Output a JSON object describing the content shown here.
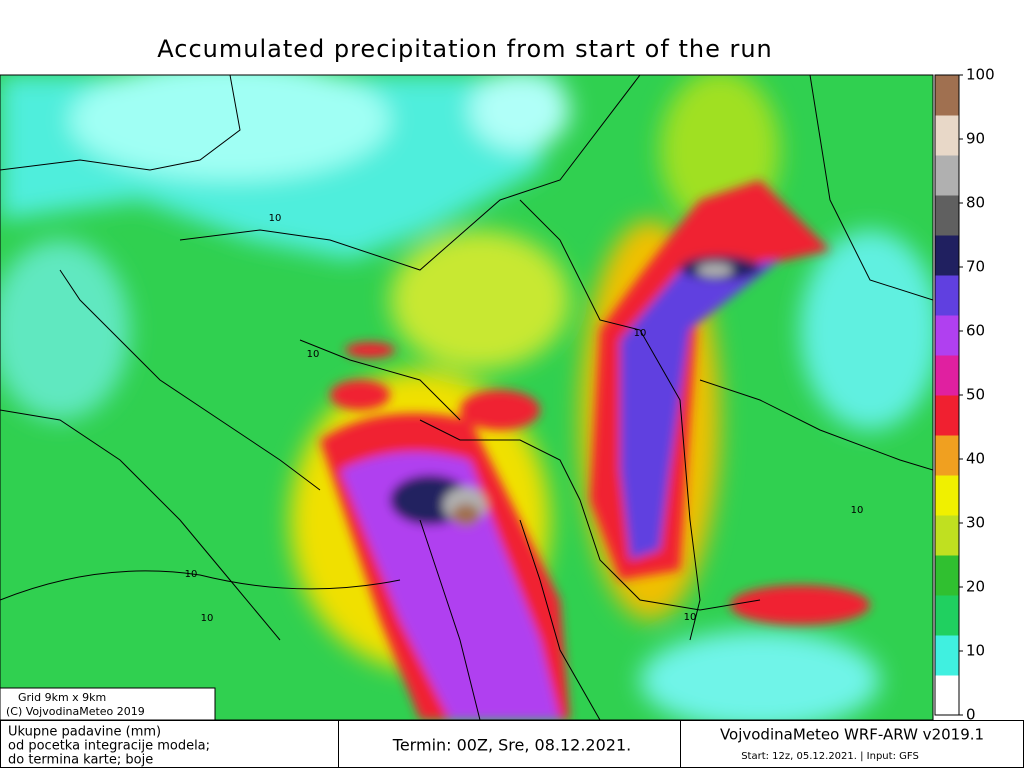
{
  "title": "Accumulated precipitation from start of the run",
  "colorbar": {
    "ticks": [
      0,
      10,
      20,
      30,
      40,
      50,
      60,
      70,
      80,
      90,
      100
    ],
    "colors": [
      "#ffffff",
      "#40f0e0",
      "#20d060",
      "#30c030",
      "#c0e020",
      "#f0f000",
      "#f0a020",
      "#f02030",
      "#e020a0",
      "#b040f0",
      "#6040e0",
      "#202060",
      "#606060",
      "#b0b0b0",
      "#e8d8c8",
      "#a07050"
    ]
  },
  "contour_labels": [
    10,
    10,
    10,
    10,
    10,
    10,
    10
  ],
  "grid_note": [
    "Grid 9km x 9km",
    "(C) VojvodinaMeteo 2019"
  ],
  "footer": {
    "left": [
      "Ukupne padavine (mm)",
      "od pocetka integracije modela;",
      "do termina karte; boje"
    ],
    "center": "Termin: 00Z, Sre, 08.12.2021.",
    "right": [
      "VojvodinaMeteo WRF-ARW v2019.1",
      "Start: 12z, 05.12.2021. | Input: GFS"
    ]
  }
}
